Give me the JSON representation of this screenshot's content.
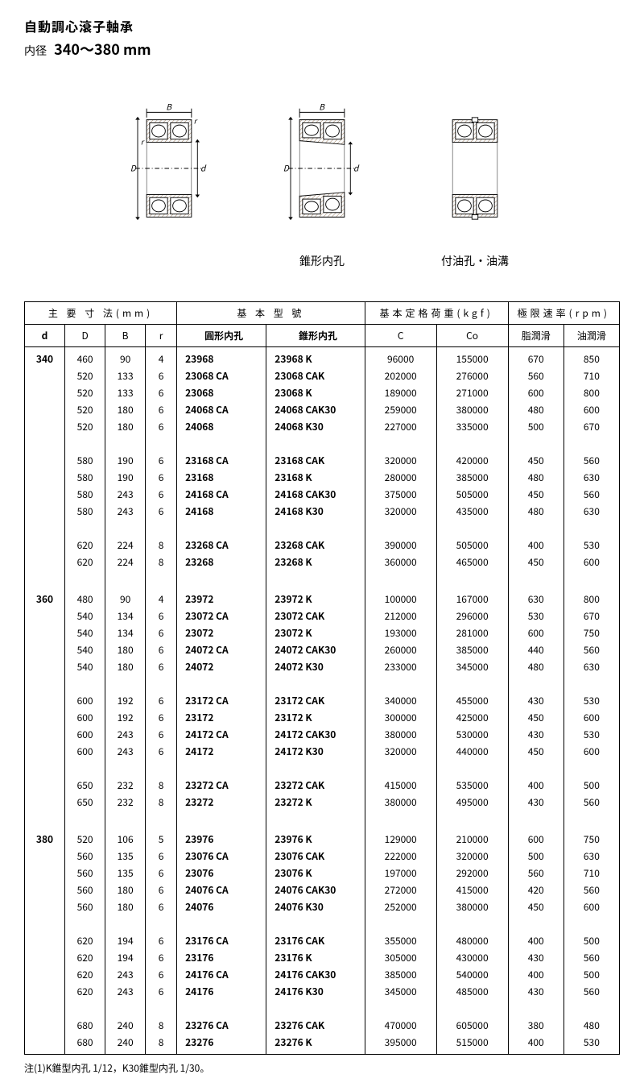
{
  "header": {
    "title": "自動調心滾子軸承",
    "subtitle_label": "内径",
    "subtitle_range": "340～380 mm"
  },
  "diagram_captions": {
    "c1": "",
    "c2": "錐形内孔",
    "c3": "付油孔・油溝"
  },
  "table": {
    "group1": "主 要 寸 法(mm)",
    "group2": "基 本 型 號",
    "group3": "基本定格荷重(kgf)",
    "group4": "極限速率(rpm)",
    "h_d": "d",
    "h_D": "D",
    "h_B": "B",
    "h_r": "r",
    "h_m1": "圓形内孔",
    "h_m2": "錐形内孔",
    "h_C": "C",
    "h_Co": "Co",
    "h_s1": "脂潤滑",
    "h_s2": "油潤滑",
    "groups": [
      {
        "d": "340",
        "blocks": [
          [
            {
              "D": "460",
              "B": "90",
              "r": "4",
              "m1": "23968",
              "m2": "23968 K",
              "C": "96000",
              "Co": "155000",
              "s1": "670",
              "s2": "850"
            },
            {
              "D": "520",
              "B": "133",
              "r": "6",
              "m1": "23068 CA",
              "m2": "23068 CAK",
              "C": "202000",
              "Co": "276000",
              "s1": "560",
              "s2": "710"
            },
            {
              "D": "520",
              "B": "133",
              "r": "6",
              "m1": "23068",
              "m2": "23068 K",
              "C": "189000",
              "Co": "271000",
              "s1": "600",
              "s2": "800"
            },
            {
              "D": "520",
              "B": "180",
              "r": "6",
              "m1": "24068 CA",
              "m2": "24068 CAK30",
              "C": "259000",
              "Co": "380000",
              "s1": "480",
              "s2": "600"
            },
            {
              "D": "520",
              "B": "180",
              "r": "6",
              "m1": "24068",
              "m2": "24068 K30",
              "C": "227000",
              "Co": "335000",
              "s1": "500",
              "s2": "670"
            }
          ],
          [
            {
              "D": "580",
              "B": "190",
              "r": "6",
              "m1": "23168 CA",
              "m2": "23168 CAK",
              "C": "320000",
              "Co": "420000",
              "s1": "450",
              "s2": "560"
            },
            {
              "D": "580",
              "B": "190",
              "r": "6",
              "m1": "23168",
              "m2": "23168 K",
              "C": "280000",
              "Co": "385000",
              "s1": "480",
              "s2": "630"
            },
            {
              "D": "580",
              "B": "243",
              "r": "6",
              "m1": "24168 CA",
              "m2": "24168 CAK30",
              "C": "375000",
              "Co": "505000",
              "s1": "450",
              "s2": "560"
            },
            {
              "D": "580",
              "B": "243",
              "r": "6",
              "m1": "24168",
              "m2": "24168 K30",
              "C": "320000",
              "Co": "435000",
              "s1": "480",
              "s2": "630"
            }
          ],
          [
            {
              "D": "620",
              "B": "224",
              "r": "8",
              "m1": "23268 CA",
              "m2": "23268 CAK",
              "C": "390000",
              "Co": "505000",
              "s1": "400",
              "s2": "530"
            },
            {
              "D": "620",
              "B": "224",
              "r": "8",
              "m1": "23268",
              "m2": "23268 K",
              "C": "360000",
              "Co": "465000",
              "s1": "450",
              "s2": "600"
            }
          ]
        ]
      },
      {
        "d": "360",
        "blocks": [
          [
            {
              "D": "480",
              "B": "90",
              "r": "4",
              "m1": "23972",
              "m2": "23972 K",
              "C": "100000",
              "Co": "167000",
              "s1": "630",
              "s2": "800"
            },
            {
              "D": "540",
              "B": "134",
              "r": "6",
              "m1": "23072 CA",
              "m2": "23072 CAK",
              "C": "212000",
              "Co": "296000",
              "s1": "530",
              "s2": "670"
            },
            {
              "D": "540",
              "B": "134",
              "r": "6",
              "m1": "23072",
              "m2": "23072 K",
              "C": "193000",
              "Co": "281000",
              "s1": "600",
              "s2": "750"
            },
            {
              "D": "540",
              "B": "180",
              "r": "6",
              "m1": "24072 CA",
              "m2": "24072 CAK30",
              "C": "260000",
              "Co": "385000",
              "s1": "440",
              "s2": "560"
            },
            {
              "D": "540",
              "B": "180",
              "r": "6",
              "m1": "24072",
              "m2": "24072 K30",
              "C": "233000",
              "Co": "345000",
              "s1": "480",
              "s2": "630"
            }
          ],
          [
            {
              "D": "600",
              "B": "192",
              "r": "6",
              "m1": "23172 CA",
              "m2": "23172 CAK",
              "C": "340000",
              "Co": "455000",
              "s1": "430",
              "s2": "530"
            },
            {
              "D": "600",
              "B": "192",
              "r": "6",
              "m1": "23172",
              "m2": "23172 K",
              "C": "300000",
              "Co": "425000",
              "s1": "450",
              "s2": "600"
            },
            {
              "D": "600",
              "B": "243",
              "r": "6",
              "m1": "24172 CA",
              "m2": "24172 CAK30",
              "C": "380000",
              "Co": "530000",
              "s1": "430",
              "s2": "530"
            },
            {
              "D": "600",
              "B": "243",
              "r": "6",
              "m1": "24172",
              "m2": "24172 K30",
              "C": "320000",
              "Co": "440000",
              "s1": "450",
              "s2": "600"
            }
          ],
          [
            {
              "D": "650",
              "B": "232",
              "r": "8",
              "m1": "23272 CA",
              "m2": "23272 CAK",
              "C": "415000",
              "Co": "535000",
              "s1": "400",
              "s2": "500"
            },
            {
              "D": "650",
              "B": "232",
              "r": "8",
              "m1": "23272",
              "m2": "23272 K",
              "C": "380000",
              "Co": "495000",
              "s1": "430",
              "s2": "560"
            }
          ]
        ]
      },
      {
        "d": "380",
        "blocks": [
          [
            {
              "D": "520",
              "B": "106",
              "r": "5",
              "m1": "23976",
              "m2": "23976 K",
              "C": "129000",
              "Co": "210000",
              "s1": "600",
              "s2": "750"
            },
            {
              "D": "560",
              "B": "135",
              "r": "6",
              "m1": "23076 CA",
              "m2": "23076 CAK",
              "C": "222000",
              "Co": "320000",
              "s1": "500",
              "s2": "630"
            },
            {
              "D": "560",
              "B": "135",
              "r": "6",
              "m1": "23076",
              "m2": "23076 K",
              "C": "197000",
              "Co": "292000",
              "s1": "560",
              "s2": "710"
            },
            {
              "D": "560",
              "B": "180",
              "r": "6",
              "m1": "24076 CA",
              "m2": "24076 CAK30",
              "C": "272000",
              "Co": "415000",
              "s1": "420",
              "s2": "560"
            },
            {
              "D": "560",
              "B": "180",
              "r": "6",
              "m1": "24076",
              "m2": "24076 K30",
              "C": "252000",
              "Co": "380000",
              "s1": "450",
              "s2": "600"
            }
          ],
          [
            {
              "D": "620",
              "B": "194",
              "r": "6",
              "m1": "23176 CA",
              "m2": "23176 CAK",
              "C": "355000",
              "Co": "480000",
              "s1": "400",
              "s2": "500"
            },
            {
              "D": "620",
              "B": "194",
              "r": "6",
              "m1": "23176",
              "m2": "23176 K",
              "C": "305000",
              "Co": "430000",
              "s1": "430",
              "s2": "560"
            },
            {
              "D": "620",
              "B": "243",
              "r": "6",
              "m1": "24176 CA",
              "m2": "24176 CAK30",
              "C": "385000",
              "Co": "540000",
              "s1": "400",
              "s2": "500"
            },
            {
              "D": "620",
              "B": "243",
              "r": "6",
              "m1": "24176",
              "m2": "24176 K30",
              "C": "345000",
              "Co": "485000",
              "s1": "430",
              "s2": "560"
            }
          ],
          [
            {
              "D": "680",
              "B": "240",
              "r": "8",
              "m1": "23276 CA",
              "m2": "23276 CAK",
              "C": "470000",
              "Co": "605000",
              "s1": "380",
              "s2": "480"
            },
            {
              "D": "680",
              "B": "240",
              "r": "8",
              "m1": "23276",
              "m2": "23276 K",
              "C": "395000",
              "Co": "515000",
              "s1": "400",
              "s2": "530"
            }
          ]
        ]
      }
    ]
  },
  "footnote": "注(1)K錐型内孔 1/12，K30錐型内孔 1/30。",
  "colors": {
    "text": "#000000",
    "bg": "#ffffff",
    "border": "#000000",
    "hatch": "#9b7a5a"
  }
}
